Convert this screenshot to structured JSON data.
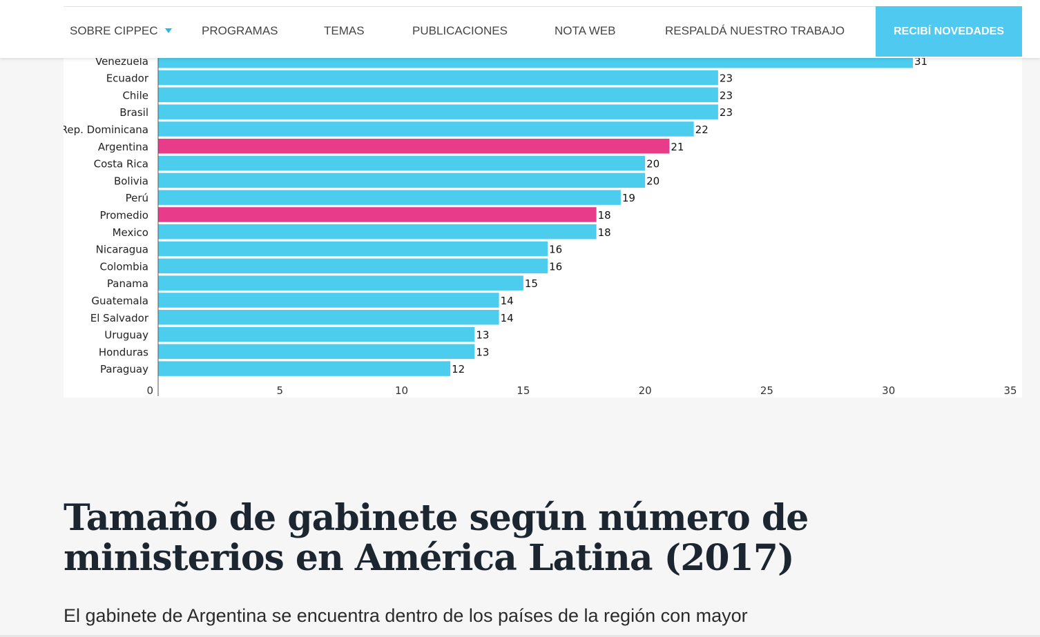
{
  "nav": {
    "items": [
      {
        "label": "SOBRE CIPPEC",
        "has_dropdown": true
      },
      {
        "label": "PROGRAMAS"
      },
      {
        "label": "TEMAS"
      },
      {
        "label": "PUBLICACIONES"
      },
      {
        "label": "NOTA WEB"
      },
      {
        "label": "RESPALDÁ NUESTRO TRABAJO"
      }
    ],
    "cta_label": "RECIBÍ NOVEDADES",
    "cta_color": "#4fc9ef",
    "caret_color": "#29b6e6",
    "text_color": "#444444"
  },
  "chart_data": {
    "type": "bar",
    "orientation": "horizontal",
    "title": "",
    "xlabel": "",
    "ylabel": "",
    "categories": [
      "Venezuela",
      "Ecuador",
      "Chile",
      "Brasil",
      "Rep. Dominicana",
      "Argentina",
      "Costa Rica",
      "Bolivia",
      "Perú",
      "Promedio",
      "Mexico",
      "Nicaragua",
      "Colombia",
      "Panama",
      "Guatemala",
      "El Salvador",
      "Uruguay",
      "Honduras",
      "Paraguay"
    ],
    "values": [
      31,
      23,
      23,
      23,
      22,
      21,
      20,
      20,
      19,
      18,
      18,
      16,
      16,
      15,
      14,
      14,
      13,
      13,
      12
    ],
    "highlighted": [
      "Argentina",
      "Promedio"
    ],
    "colors": {
      "default": "#4dcdee",
      "highlight": "#e83c8a"
    },
    "xlim": [
      0,
      35
    ],
    "xticks": [
      0,
      5,
      10,
      15,
      20,
      25,
      30,
      35
    ],
    "grid": false,
    "legend": "none"
  },
  "article": {
    "title": "Tamaño de gabinete según número de ministerios en América Latina (2017)",
    "intro": "El gabinete de Argentina se encuentra dentro de los países de la región con mayor"
  }
}
